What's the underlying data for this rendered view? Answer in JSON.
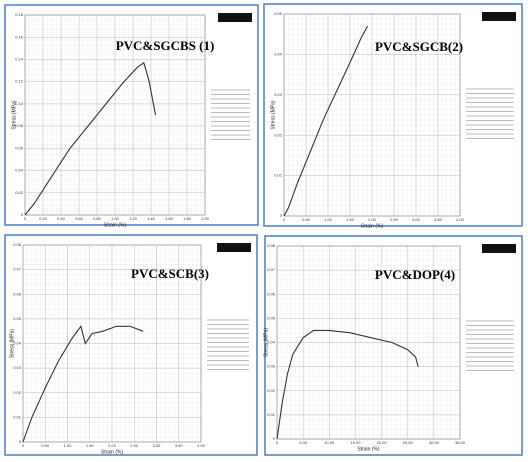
{
  "chart_data": [
    {
      "type": "line",
      "title": "PVC&SGCBS (1)",
      "x_label": "Strain (%)",
      "y_label": "Stress (MPa)",
      "xlim": [
        0,
        2.0
      ],
      "xticks": [
        0,
        {
          "value": 0.2,
          "label": "0.20"
        },
        {
          "value": 0.4,
          "label": "0.40"
        },
        {
          "value": 0.6,
          "label": "0.60"
        },
        {
          "value": 0.8,
          "label": "0.80"
        },
        {
          "value": 1.0,
          "label": "1.00"
        },
        {
          "value": 1.2,
          "label": "1.20"
        },
        {
          "value": 1.4,
          "label": "1.40"
        },
        {
          "value": 1.6,
          "label": "1.60"
        },
        {
          "value": 1.8,
          "label": "1.80"
        },
        {
          "value": 2.0,
          "label": "2.00"
        }
      ],
      "ylim": [
        0,
        0.18
      ],
      "yticks": [
        0,
        0.02,
        0.04,
        0.06,
        0.08,
        {
          "value": 0.1,
          "label": "0.10"
        },
        0.12,
        0.14,
        0.16,
        0.18
      ],
      "x": [
        0,
        0.1,
        0.3,
        0.5,
        0.7,
        0.9,
        1.1,
        1.25,
        1.32,
        1.38,
        1.45
      ],
      "series": [
        {
          "color": "#333333",
          "values": [
            0,
            0.01,
            0.035,
            0.06,
            0.08,
            0.1,
            0.12,
            0.133,
            0.137,
            0.12,
            0.09
          ]
        }
      ],
      "grid": true
    },
    {
      "type": "line",
      "title": "PVC&SGCB(2)",
      "x_label": "Strain (%)",
      "y_label": "Stress (MPa)",
      "xlim": [
        0,
        4.0
      ],
      "xticks": [
        0,
        {
          "value": 0.5,
          "label": "0.50"
        },
        {
          "value": 1.0,
          "label": "1.00"
        },
        {
          "value": 1.5,
          "label": "1.50"
        },
        {
          "value": 2.0,
          "label": "2.00"
        },
        {
          "value": 2.5,
          "label": "2.50"
        },
        {
          "value": 3.0,
          "label": "3.00"
        },
        {
          "value": 3.5,
          "label": "3.50"
        },
        {
          "value": 4.0,
          "label": "4.00"
        }
      ],
      "ylim": [
        0,
        0.05
      ],
      "yticks": [
        0,
        0.01,
        0.02,
        0.03,
        0.04,
        0.05
      ],
      "x": [
        0,
        0.1,
        0.3,
        0.6,
        0.9,
        1.2,
        1.5,
        1.75,
        1.9
      ],
      "series": [
        {
          "color": "#333333",
          "values": [
            0,
            0.002,
            0.008,
            0.016,
            0.024,
            0.031,
            0.038,
            0.044,
            0.047
          ]
        }
      ],
      "grid": true
    },
    {
      "type": "line",
      "title": "PVC&SCB(3)",
      "x_label": "Strain (%)",
      "y_label": "Stress (MPa)",
      "xlim": [
        0,
        4.0
      ],
      "xticks": [
        0,
        {
          "value": 0.5,
          "label": "0.50"
        },
        {
          "value": 1.0,
          "label": "1.00"
        },
        {
          "value": 1.5,
          "label": "1.50"
        },
        {
          "value": 2.0,
          "label": "2.00"
        },
        {
          "value": 2.5,
          "label": "2.50"
        },
        {
          "value": 3.0,
          "label": "3.00"
        },
        {
          "value": 3.5,
          "label": "3.50"
        },
        {
          "value": 4.0,
          "label": "4.00"
        }
      ],
      "ylim": [
        0,
        0.08
      ],
      "yticks": [
        0,
        0.01,
        0.02,
        0.03,
        0.04,
        0.05,
        0.06,
        0.07,
        0.08
      ],
      "x": [
        0,
        0.2,
        0.5,
        0.8,
        1.1,
        1.3,
        1.4,
        1.55,
        1.8,
        2.1,
        2.4,
        2.7
      ],
      "series": [
        {
          "color": "#333333",
          "values": [
            0,
            0.01,
            0.022,
            0.033,
            0.042,
            0.047,
            0.04,
            0.044,
            0.045,
            0.047,
            0.047,
            0.045
          ]
        }
      ],
      "grid": true
    },
    {
      "type": "line",
      "title": "PVC&DOP(4)",
      "x_label": "Strain (%)",
      "y_label": "Stress (MPa)",
      "xlim": [
        0,
        35
      ],
      "xticks": [
        0,
        {
          "value": 5,
          "label": "5.00"
        },
        {
          "value": 10,
          "label": "10.00"
        },
        {
          "value": 15,
          "label": "15.00"
        },
        {
          "value": 20,
          "label": "20.00"
        },
        {
          "value": 25,
          "label": "25.00"
        },
        {
          "value": 30,
          "label": "30.00"
        },
        {
          "value": 35,
          "label": "35.00"
        }
      ],
      "ylim": [
        0,
        0.08
      ],
      "yticks": [
        0,
        0.01,
        0.02,
        0.03,
        0.04,
        0.05,
        0.06,
        0.07,
        0.08
      ],
      "x": [
        0,
        1,
        2,
        3,
        5,
        7,
        10,
        14,
        18,
        22,
        25,
        26.5,
        27
      ],
      "series": [
        {
          "color": "#333333",
          "values": [
            0,
            0.015,
            0.027,
            0.035,
            0.042,
            0.045,
            0.045,
            0.044,
            0.042,
            0.04,
            0.037,
            0.034,
            0.03
          ]
        }
      ],
      "grid": true
    }
  ]
}
